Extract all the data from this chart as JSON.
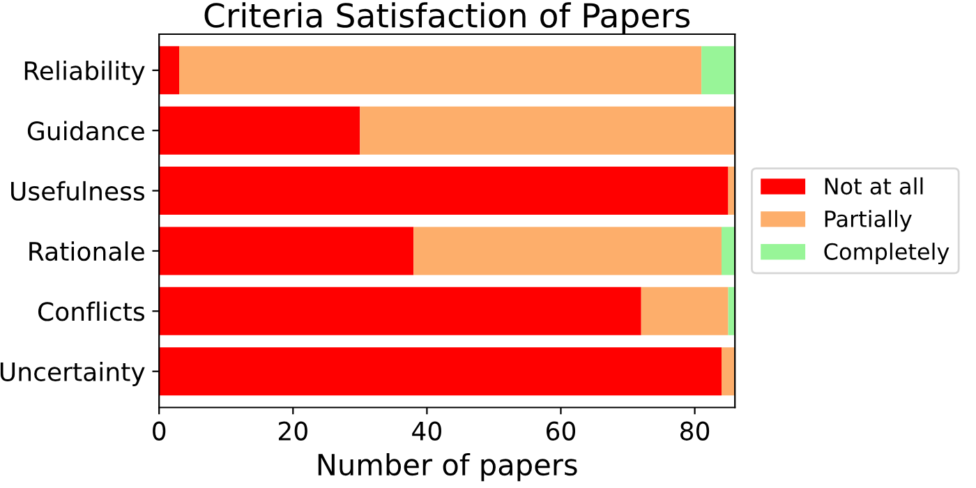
{
  "chart_data": {
    "type": "bar",
    "orientation": "horizontal",
    "stacked": true,
    "title": "Criteria Satisfaction of Papers",
    "xlabel": "Number of papers",
    "categories": [
      "Reliability",
      "Guidance",
      "Usefulness",
      "Rationale",
      "Conflicts",
      "Uncertainty"
    ],
    "series": [
      {
        "name": "Not at all",
        "color": "#ff0000",
        "values": [
          3,
          30,
          85,
          38,
          72,
          84
        ]
      },
      {
        "name": "Partially",
        "color": "#fdae6b",
        "values": [
          78,
          56,
          1,
          46,
          13,
          2
        ]
      },
      {
        "name": "Completely",
        "color": "#98f598",
        "values": [
          5,
          0,
          0,
          2,
          1,
          0
        ]
      }
    ],
    "xlim": [
      0,
      86
    ],
    "xticks": [
      0,
      20,
      40,
      60,
      80
    ],
    "legend": "right",
    "grid": false
  }
}
